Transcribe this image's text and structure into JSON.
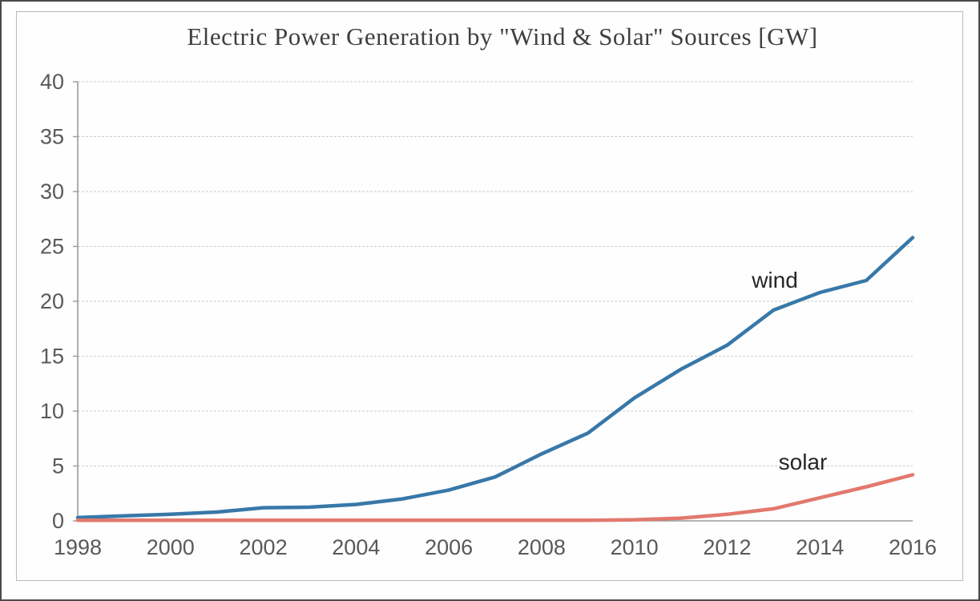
{
  "chart_data": {
    "type": "line",
    "title": "Electric Power Generation by \"Wind & Solar\" Sources [GW]",
    "xlabel": "",
    "ylabel": "",
    "ylim": [
      0,
      40
    ],
    "grid": true,
    "legend_position": "inline-labels-near-lines",
    "x": [
      1998,
      1999,
      2000,
      2001,
      2002,
      2003,
      2004,
      2005,
      2006,
      2007,
      2008,
      2009,
      2010,
      2011,
      2012,
      2013,
      2014,
      2015,
      2016
    ],
    "x_tick_labels": [
      "1998",
      "2000",
      "2002",
      "2004",
      "2006",
      "2008",
      "2010",
      "2012",
      "2014",
      "2016"
    ],
    "y_tick_labels": [
      "0",
      "5",
      "10",
      "15",
      "20",
      "25",
      "30",
      "35",
      "40"
    ],
    "series": [
      {
        "name": "wind",
        "label": "wind",
        "color": "#3878a8",
        "values": [
          0.3,
          0.45,
          0.6,
          0.8,
          1.2,
          1.25,
          1.5,
          2.0,
          2.8,
          4.0,
          6.1,
          8.0,
          11.2,
          13.8,
          16.0,
          19.2,
          20.8,
          21.9,
          25.8
        ]
      },
      {
        "name": "solar",
        "label": "solar",
        "color": "#e2796e",
        "values": [
          0.05,
          0.05,
          0.05,
          0.05,
          0.05,
          0.05,
          0.05,
          0.05,
          0.05,
          0.05,
          0.05,
          0.05,
          0.1,
          0.25,
          0.6,
          1.1,
          2.1,
          3.1,
          4.2
        ]
      }
    ],
    "colors": {
      "wind_line": "#3878a8",
      "solar_line": "#e2796e",
      "gridline": "#cccccc",
      "axis_line": "#9a9a9a",
      "tick_text": "#595959",
      "title_text": "#3f3f3f",
      "series_label_text": "#262626"
    }
  }
}
